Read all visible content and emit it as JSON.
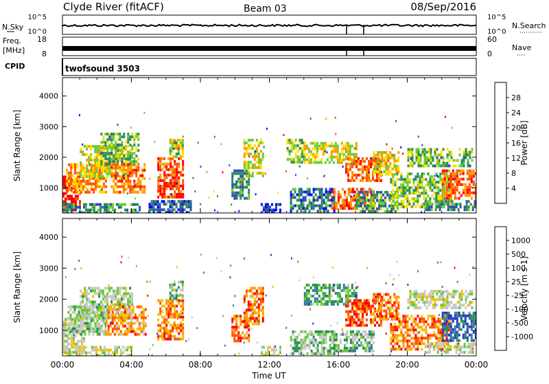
{
  "header": {
    "station": "Clyde River (fitACF)",
    "beam": "Beam 03",
    "date": "08/Sep/2016"
  },
  "side_labels": {
    "nsky": "N.Sky",
    "nsearch": "N.Search",
    "freq": "Freq.",
    "freq_unit": "[MHz]",
    "nave": "Nave",
    "cpid": "CPID",
    "cpid_value": "twofsound 3503"
  },
  "strip_ticks": {
    "nsky_left": [
      "10^5",
      "10^0"
    ],
    "nsky_right": [
      "10^5",
      "10^0"
    ],
    "freq_left": [
      "18",
      "8"
    ],
    "nave_right": [
      "60",
      "0"
    ]
  },
  "colors": {
    "power_scale": [
      "#0000ff",
      "#2a4fb0",
      "#2e8b57",
      "#66cc33",
      "#ffdd00",
      "#ff9900",
      "#ff5500",
      "#ff0000"
    ],
    "velocity_scale": [
      "#ff0000",
      "#ff5500",
      "#ff9900",
      "#f2c200",
      "#c8c8c8",
      "#c8c8c8",
      "#66cc33",
      "#2e8b57",
      "#3a7ca5",
      "#1f3fbf"
    ]
  },
  "chart_data": [
    {
      "type": "heatmap",
      "name": "power",
      "xlabel": "Time UT",
      "ylabel": "Slant Range [km]",
      "x_ticks": [
        "00:00",
        "04:00",
        "08:00",
        "12:00",
        "16:00",
        "20:00",
        "00:00"
      ],
      "xlim_hours": [
        0,
        24
      ],
      "ylim_km": [
        180,
        4600
      ],
      "y_ticks": [
        1000,
        2000,
        3000,
        4000
      ],
      "colorbar_label": "Power [dB]",
      "colorbar_ticks": [
        4,
        8,
        12,
        16,
        20,
        24,
        28
      ],
      "colorbar_range": [
        0,
        32
      ],
      "regions": [
        {
          "t0": 0.0,
          "t1": 1.0,
          "r0": 300,
          "r1": 1400,
          "level": 0.95
        },
        {
          "t0": 0.2,
          "t1": 2.5,
          "r0": 900,
          "r1": 1800,
          "level": 0.7
        },
        {
          "t0": 1.0,
          "t1": 4.0,
          "r0": 1400,
          "r1": 2400,
          "level": 0.55
        },
        {
          "t0": 2.2,
          "t1": 4.4,
          "r0": 1800,
          "r1": 2800,
          "level": 0.4
        },
        {
          "t0": 2.8,
          "t1": 4.8,
          "r0": 900,
          "r1": 1800,
          "level": 0.75
        },
        {
          "t0": 0.0,
          "t1": 4.5,
          "r0": 200,
          "r1": 500,
          "level": 0.3
        },
        {
          "t0": 5.5,
          "t1": 7.0,
          "r0": 700,
          "r1": 2000,
          "level": 0.85
        },
        {
          "t0": 6.2,
          "t1": 7.0,
          "r0": 2000,
          "r1": 2600,
          "level": 0.5
        },
        {
          "t0": 5.0,
          "t1": 7.5,
          "r0": 200,
          "r1": 600,
          "level": 0.2
        },
        {
          "t0": 9.8,
          "t1": 10.8,
          "r0": 700,
          "r1": 1600,
          "level": 0.3
        },
        {
          "t0": 10.5,
          "t1": 11.6,
          "r0": 1400,
          "r1": 2600,
          "level": 0.55
        },
        {
          "t0": 11.5,
          "t1": 12.6,
          "r0": 200,
          "r1": 500,
          "level": 0.1
        },
        {
          "t0": 13.0,
          "t1": 14.0,
          "r0": 1800,
          "r1": 2600,
          "level": 0.45
        },
        {
          "t0": 13.2,
          "t1": 15.8,
          "r0": 250,
          "r1": 1000,
          "level": 0.25
        },
        {
          "t0": 14.0,
          "t1": 17.0,
          "r0": 1800,
          "r1": 2500,
          "level": 0.55
        },
        {
          "t0": 15.6,
          "t1": 18.0,
          "r0": 300,
          "r1": 1000,
          "level": 0.8
        },
        {
          "t0": 16.4,
          "t1": 18.5,
          "r0": 1200,
          "r1": 2000,
          "level": 0.8
        },
        {
          "t0": 17.0,
          "t1": 19.5,
          "r0": 200,
          "r1": 900,
          "level": 0.35
        },
        {
          "t0": 18.0,
          "t1": 19.5,
          "r0": 1400,
          "r1": 2200,
          "level": 0.6
        },
        {
          "t0": 19.0,
          "t1": 22.5,
          "r0": 400,
          "r1": 1500,
          "level": 0.45
        },
        {
          "t0": 20.0,
          "t1": 23.8,
          "r0": 1700,
          "r1": 2300,
          "level": 0.4
        },
        {
          "t0": 22.0,
          "t1": 24.0,
          "r0": 700,
          "r1": 1600,
          "level": 0.8
        },
        {
          "t0": 21.0,
          "t1": 24.0,
          "r0": 250,
          "r1": 600,
          "level": 0.3
        }
      ]
    },
    {
      "type": "heatmap",
      "name": "velocity",
      "xlabel": "Time UT",
      "ylabel": "Slant Range [km]",
      "x_ticks": [
        "00:00",
        "04:00",
        "08:00",
        "12:00",
        "16:00",
        "20:00",
        "00:00"
      ],
      "xlim_hours": [
        0,
        24
      ],
      "ylim_km": [
        180,
        4600
      ],
      "y_ticks": [
        1000,
        2000,
        3000,
        4000
      ],
      "colorbar_label": "Velocity [m s-1]",
      "colorbar_ticks": [
        "-1000",
        "-500",
        "-100",
        "-25",
        "25",
        "100",
        "500",
        "1000"
      ],
      "regions": [
        {
          "t0": 0.0,
          "t1": 1.2,
          "r0": 300,
          "r1": 1400,
          "level": 0.5
        },
        {
          "t0": 0.3,
          "t1": 2.5,
          "r0": 900,
          "r1": 1800,
          "level": 0.6
        },
        {
          "t0": 1.0,
          "t1": 4.0,
          "r0": 1400,
          "r1": 2400,
          "level": 0.55
        },
        {
          "t0": 2.5,
          "t1": 4.8,
          "r0": 900,
          "r1": 1800,
          "level": 0.25
        },
        {
          "t0": 0.0,
          "t1": 4.0,
          "r0": 200,
          "r1": 500,
          "level": 0.5
        },
        {
          "t0": 5.5,
          "t1": 7.0,
          "r0": 700,
          "r1": 2000,
          "level": 0.22
        },
        {
          "t0": 6.2,
          "t1": 7.0,
          "r0": 2000,
          "r1": 2600,
          "level": 0.6
        },
        {
          "t0": 9.8,
          "t1": 10.8,
          "r0": 700,
          "r1": 1500,
          "level": 0.15
        },
        {
          "t0": 10.5,
          "t1": 11.6,
          "r0": 1200,
          "r1": 2400,
          "level": 0.2
        },
        {
          "t0": 11.5,
          "t1": 12.6,
          "r0": 200,
          "r1": 500,
          "level": 0.5
        },
        {
          "t0": 13.2,
          "t1": 15.8,
          "r0": 250,
          "r1": 1000,
          "level": 0.62
        },
        {
          "t0": 14.0,
          "t1": 17.0,
          "r0": 1800,
          "r1": 2500,
          "level": 0.75
        },
        {
          "t0": 15.6,
          "t1": 18.0,
          "r0": 300,
          "r1": 1000,
          "level": 0.65
        },
        {
          "t0": 16.4,
          "t1": 18.5,
          "r0": 1200,
          "r1": 2000,
          "level": 0.15
        },
        {
          "t0": 18.0,
          "t1": 19.5,
          "r0": 1400,
          "r1": 2200,
          "level": 0.2
        },
        {
          "t0": 19.0,
          "t1": 22.5,
          "r0": 400,
          "r1": 1500,
          "level": 0.2
        },
        {
          "t0": 20.0,
          "t1": 23.8,
          "r0": 1700,
          "r1": 2300,
          "level": 0.5
        },
        {
          "t0": 22.0,
          "t1": 24.0,
          "r0": 700,
          "r1": 1600,
          "level": 0.9
        },
        {
          "t0": 21.0,
          "t1": 24.0,
          "r0": 250,
          "r1": 600,
          "level": 0.5
        }
      ]
    }
  ]
}
